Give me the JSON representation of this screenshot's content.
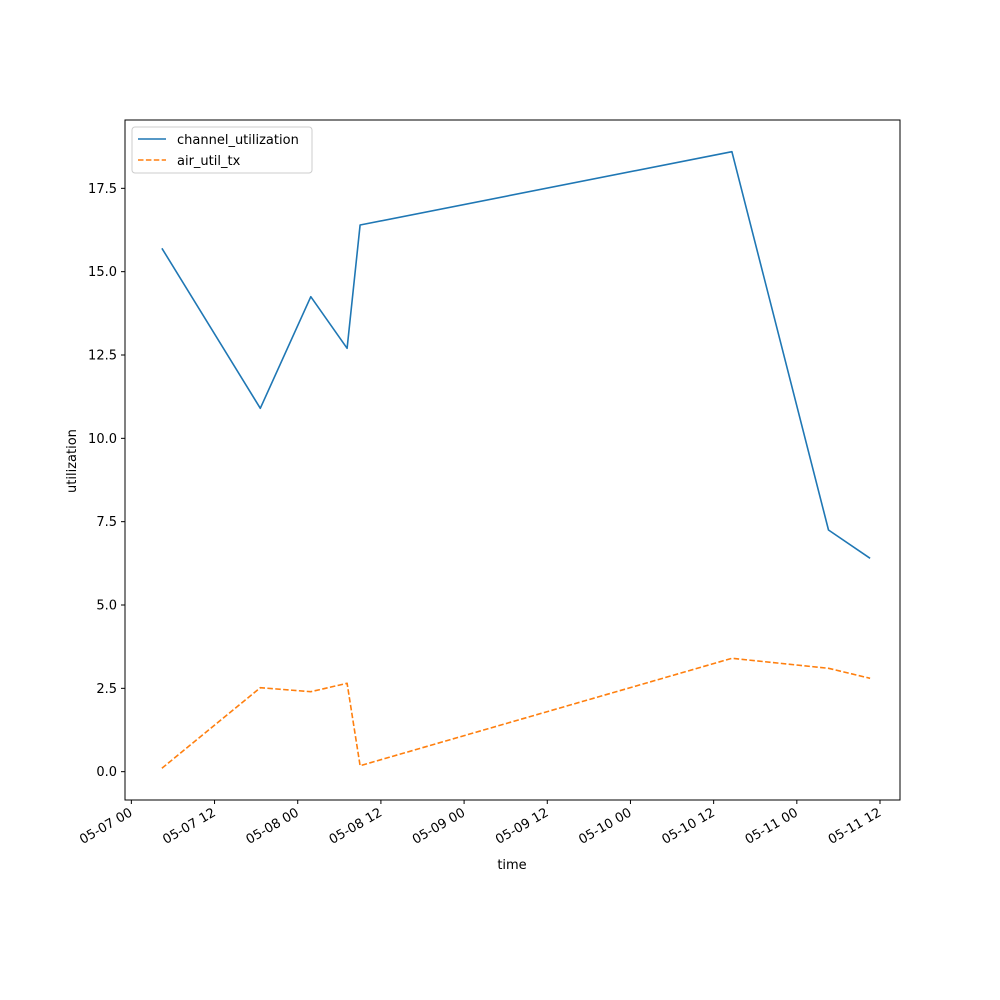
{
  "chart_data": {
    "type": "line",
    "title": "",
    "xlabel": "time",
    "ylabel": "utilization",
    "x_ticks": [
      "05-07 00",
      "05-07 12",
      "05-08 00",
      "05-08 12",
      "05-09 00",
      "05-09 12",
      "05-10 00",
      "05-10 12",
      "05-11 00",
      "05-11 12"
    ],
    "x_tick_values": [
      "2024-05-07T00:00",
      "2024-05-07T12:00",
      "2024-05-08T00:00",
      "2024-05-08T12:00",
      "2024-05-09T00:00",
      "2024-05-09T12:00",
      "2024-05-10T00:00",
      "2024-05-10T12:00",
      "2024-05-11T00:00",
      "2024-05-11T12:00"
    ],
    "y_ticks": [
      "0.0",
      "2.5",
      "5.0",
      "7.5",
      "10.0",
      "12.5",
      "15.0",
      "17.5"
    ],
    "y_tick_values": [
      0,
      2.5,
      5,
      7.5,
      10,
      12.5,
      15,
      17.5
    ],
    "xlim": [
      "2024-05-06T23:05",
      "2024-05-11T14:53"
    ],
    "ylim": [
      -0.85,
      19.55
    ],
    "grid": false,
    "legend": "upper-left",
    "series": [
      {
        "name": "channel_utilization",
        "color": "#1f77b4",
        "dash": "solid",
        "points": [
          {
            "x": "2024-05-07T04:24",
            "y": 15.7
          },
          {
            "x": "2024-05-07T18:36",
            "y": 10.9
          },
          {
            "x": "2024-05-08T01:53",
            "y": 14.25
          },
          {
            "x": "2024-05-08T07:07",
            "y": 12.7
          },
          {
            "x": "2024-05-08T09:00",
            "y": 16.4
          },
          {
            "x": "2024-05-10T14:38",
            "y": 18.6
          },
          {
            "x": "2024-05-11T04:34",
            "y": 7.25
          },
          {
            "x": "2024-05-11T10:34",
            "y": 6.4
          }
        ]
      },
      {
        "name": "air_util_tx",
        "color": "#ff7f0e",
        "dash": "dashed",
        "points": [
          {
            "x": "2024-05-07T04:24",
            "y": 0.1
          },
          {
            "x": "2024-05-07T18:36",
            "y": 2.52
          },
          {
            "x": "2024-05-08T01:53",
            "y": 2.4
          },
          {
            "x": "2024-05-08T07:07",
            "y": 2.65
          },
          {
            "x": "2024-05-08T09:00",
            "y": 0.18
          },
          {
            "x": "2024-05-10T14:38",
            "y": 3.4
          },
          {
            "x": "2024-05-11T04:34",
            "y": 3.1
          },
          {
            "x": "2024-05-11T10:34",
            "y": 2.8
          }
        ]
      }
    ]
  }
}
